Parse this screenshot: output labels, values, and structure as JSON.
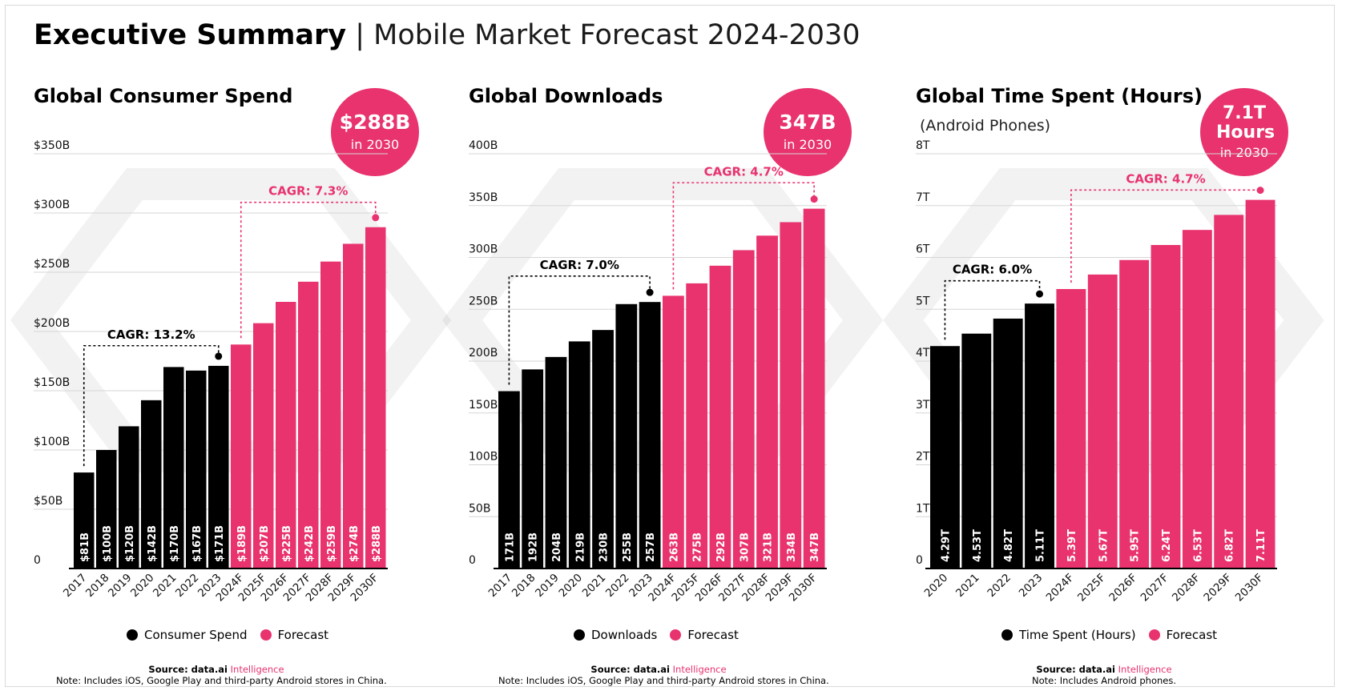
{
  "header": {
    "title_bold": "Executive Summary",
    "title_rest": "| Mobile Market Forecast 2024-2030"
  },
  "colors": {
    "actual": "#000000",
    "forecast": "#e8336e",
    "grid": "#d6d6d6"
  },
  "panels": [
    {
      "title": "Global Consumer Spend",
      "subtitle": "",
      "badge": {
        "big": "$288B",
        "small": "in 2030"
      },
      "legend": {
        "actual": "Consumer Spend",
        "forecast": "Forecast"
      },
      "source": {
        "label": "Source: data.ai",
        "brand": "Intelligence",
        "note": "Note: Includes iOS, Google Play and third-party Android stores in China."
      },
      "chart_data": {
        "type": "bar",
        "title": "Global Consumer Spend",
        "categories": [
          "2017",
          "2018",
          "2019",
          "2020",
          "2021",
          "2022",
          "2023",
          "2024F",
          "2025F",
          "2026F",
          "2027F",
          "2028F",
          "2029F",
          "2030F"
        ],
        "values": [
          81,
          100,
          120,
          142,
          170,
          167,
          171,
          189,
          207,
          225,
          242,
          259,
          274,
          288
        ],
        "value_labels": [
          "$81B",
          "$100B",
          "$120B",
          "$142B",
          "$170B",
          "$167B",
          "$171B",
          "$189B",
          "$207B",
          "$225B",
          "$242B",
          "$259B",
          "$274B",
          "$288B"
        ],
        "forecast_start": 7,
        "ylim": [
          0,
          350
        ],
        "yticks": [
          0,
          50,
          100,
          150,
          200,
          250,
          300,
          350
        ],
        "ytick_labels": [
          "0",
          "$50B",
          "$100B",
          "$150B",
          "$200B",
          "$250B",
          "$300B",
          "$350B"
        ],
        "cagr_actual": {
          "label": "CAGR: 13.2%",
          "from": 0,
          "to": 6,
          "level": 188
        },
        "cagr_forecast": {
          "label": "CAGR: 7.3%",
          "from": 7,
          "to": 13,
          "level": 309
        }
      }
    },
    {
      "title": "Global Downloads",
      "subtitle": "",
      "badge": {
        "big": "347B",
        "small": "in 2030"
      },
      "legend": {
        "actual": "Downloads",
        "forecast": "Forecast"
      },
      "source": {
        "label": "Source: data.ai",
        "brand": "Intelligence",
        "note": "Note: Includes iOS, Google Play and third-party Android stores in China."
      },
      "chart_data": {
        "type": "bar",
        "title": "Global Downloads",
        "categories": [
          "2017",
          "2018",
          "2019",
          "2020",
          "2021",
          "2022",
          "2023",
          "2024F",
          "2025F",
          "2026F",
          "2027F",
          "2028F",
          "2029F",
          "2030F"
        ],
        "values": [
          171,
          192,
          204,
          219,
          230,
          255,
          257,
          263,
          275,
          292,
          307,
          321,
          334,
          347
        ],
        "value_labels": [
          "171B",
          "192B",
          "204B",
          "219B",
          "230B",
          "255B",
          "257B",
          "263B",
          "275B",
          "292B",
          "307B",
          "321B",
          "334B",
          "347B"
        ],
        "forecast_start": 7,
        "ylim": [
          0,
          400
        ],
        "yticks": [
          0,
          50,
          100,
          150,
          200,
          250,
          300,
          350,
          400
        ],
        "ytick_labels": [
          "0",
          "50B",
          "100B",
          "150B",
          "200B",
          "250B",
          "300B",
          "350B",
          "400B"
        ],
        "cagr_actual": {
          "label": "CAGR: 7.0%",
          "from": 0,
          "to": 6,
          "level": 282
        },
        "cagr_forecast": {
          "label": "CAGR: 4.7%",
          "from": 7,
          "to": 13,
          "level": 372
        }
      }
    },
    {
      "title": "Global Time Spent (Hours)",
      "subtitle": "(Android Phones)",
      "badge": {
        "big": "7.1T Hours",
        "small": "in 2030"
      },
      "legend": {
        "actual": "Time Spent (Hours)",
        "forecast": "Forecast"
      },
      "source": {
        "label": "Source: data.ai",
        "brand": "Intelligence",
        "note": "Note: Includes Android phones."
      },
      "chart_data": {
        "type": "bar",
        "title": "Global Time Spent (Hours)",
        "categories": [
          "2020",
          "2021",
          "2022",
          "2023",
          "2024F",
          "2025F",
          "2026F",
          "2027F",
          "2028F",
          "2029F",
          "2030F"
        ],
        "values": [
          4.29,
          4.53,
          4.82,
          5.11,
          5.39,
          5.67,
          5.95,
          6.24,
          6.53,
          6.82,
          7.11
        ],
        "value_labels": [
          "4.29T",
          "4.53T",
          "4.82T",
          "5.11T",
          "5.39T",
          "5.67T",
          "5.95T",
          "6.24T",
          "6.53T",
          "6.82T",
          "7.11T"
        ],
        "forecast_start": 4,
        "ylim": [
          0,
          8
        ],
        "yticks": [
          0,
          1,
          2,
          3,
          4,
          5,
          6,
          7,
          8
        ],
        "ytick_labels": [
          "0",
          "1T",
          "2T",
          "3T",
          "4T",
          "5T",
          "6T",
          "7T",
          "8T"
        ],
        "cagr_actual": {
          "label": "CAGR: 6.0%",
          "from": 0,
          "to": 3,
          "level": 5.55
        },
        "cagr_forecast": {
          "label": "CAGR: 4.7%",
          "from": 4,
          "to": 10,
          "level": 7.3
        }
      }
    }
  ]
}
